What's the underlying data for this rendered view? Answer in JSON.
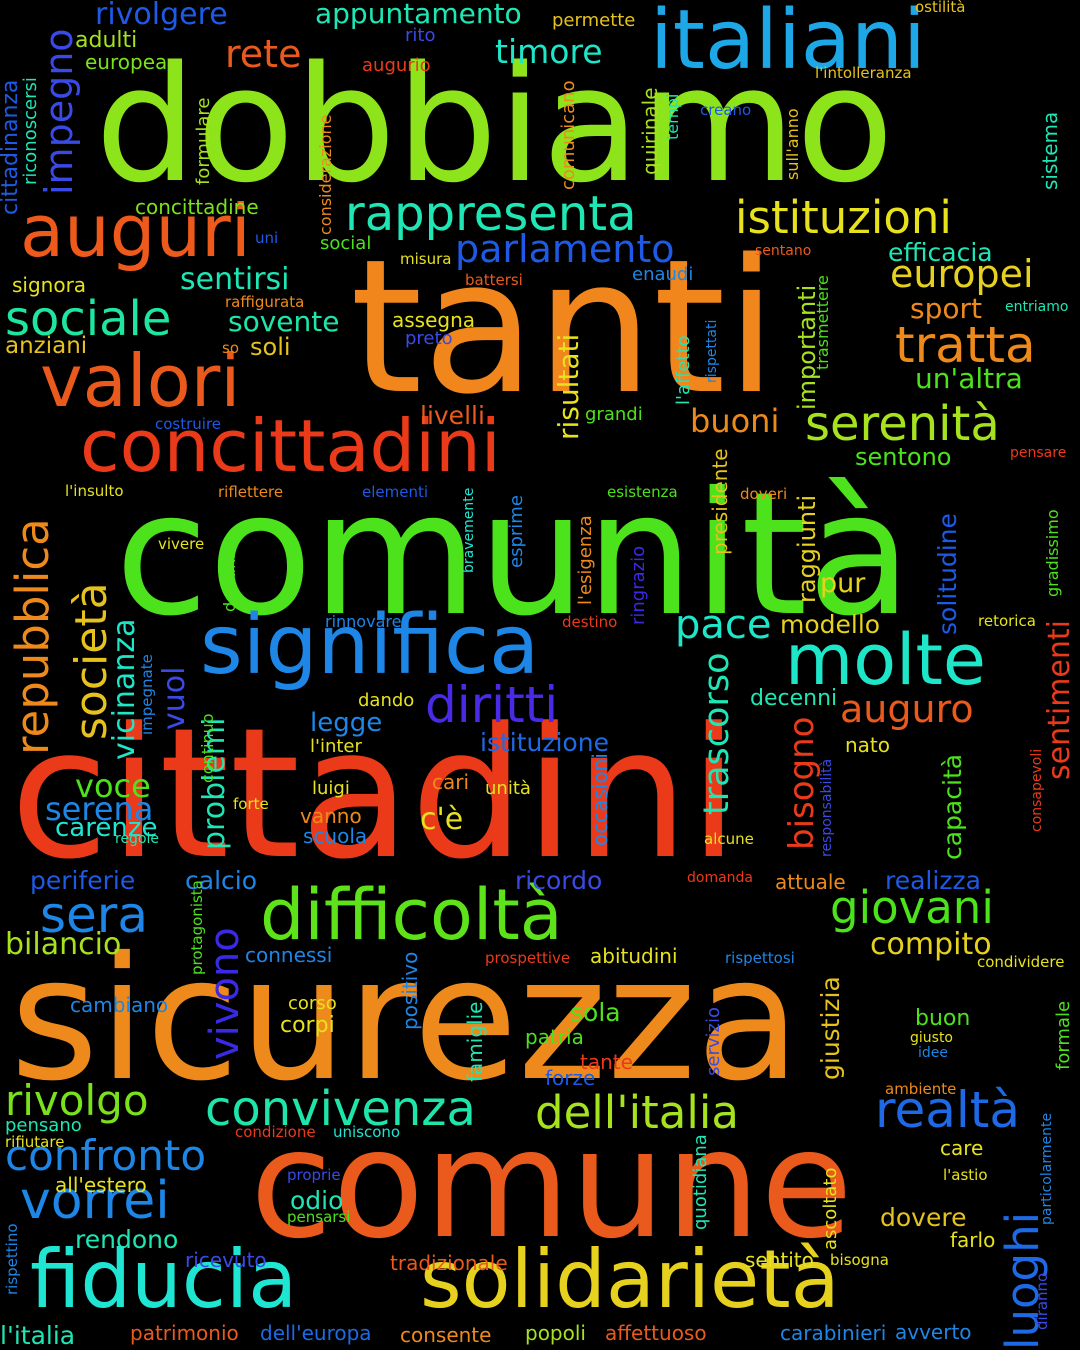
{
  "words": [
    {
      "text": "dobbiamo",
      "color": "#8ee41a"
    },
    {
      "text": "tanti",
      "color": "#f0861c"
    },
    {
      "text": "comunità",
      "color": "#4ce21c"
    },
    {
      "text": "cittadini",
      "color": "#ea3a1a"
    },
    {
      "text": "sicurezza",
      "color": "#ee8a1c"
    },
    {
      "text": "comune",
      "color": "#ea5a1c"
    },
    {
      "text": "italiani",
      "color": "#1ea7e6"
    },
    {
      "text": "auguri",
      "color": "#ee5a1c"
    },
    {
      "text": "valori",
      "color": "#ea5a1c"
    },
    {
      "text": "concittadini",
      "color": "#ea3a1a"
    },
    {
      "text": "significa",
      "color": "#1e86e6"
    },
    {
      "text": "molte",
      "color": "#1ee6c8"
    },
    {
      "text": "difficoltà",
      "color": "#5ee21a"
    },
    {
      "text": "fiducia",
      "color": "#1ee6d2"
    },
    {
      "text": "solidarietà",
      "color": "#e6d21e"
    },
    {
      "text": "rappresenta",
      "color": "#1ee6b4"
    },
    {
      "text": "istituzioni",
      "color": "#e8e21e"
    },
    {
      "text": "convivenza",
      "color": "#1ee6aa"
    },
    {
      "text": "dell'italia",
      "color": "#a6e21e"
    },
    {
      "text": "realtà",
      "color": "#1e6ae6"
    },
    {
      "text": "sociale",
      "color": "#1ee6a0"
    },
    {
      "text": "parlamento",
      "color": "#1e5ae6"
    },
    {
      "text": "europei",
      "color": "#e6d21e"
    },
    {
      "text": "tratta",
      "color": "#ee8a1c"
    },
    {
      "text": "serenità",
      "color": "#a6e21e"
    },
    {
      "text": "diritti",
      "color": "#4a2ae6"
    },
    {
      "text": "confronto",
      "color": "#1e86e6"
    },
    {
      "text": "vorrei",
      "color": "#1e86e6"
    },
    {
      "text": "giovani",
      "color": "#4ce21c"
    },
    {
      "text": "rivolgo",
      "color": "#7ae21c"
    },
    {
      "text": "sera",
      "color": "#1e86e6"
    },
    {
      "text": "pace",
      "color": "#1ee6c8"
    },
    {
      "text": "auguro",
      "color": "#ea5a1c"
    },
    {
      "text": "repubblica",
      "color": "#ee8a1c"
    },
    {
      "text": "società",
      "color": "#e6c21e"
    },
    {
      "text": "impegno",
      "color": "#3a4ae6"
    },
    {
      "text": "luoghi",
      "color": "#1e6ae6"
    },
    {
      "text": "rete",
      "color": "#ea5a1c"
    },
    {
      "text": "timore",
      "color": "#1ee6c8"
    },
    {
      "text": "appuntamento",
      "color": "#1ee6b4"
    },
    {
      "text": "rivolgere",
      "color": "#1e5ae6"
    },
    {
      "text": "adulti",
      "color": "#a6e21e"
    },
    {
      "text": "europea",
      "color": "#7ae21c"
    },
    {
      "text": "cittadinanza",
      "color": "#1e5ae6"
    },
    {
      "text": "riconoscersi",
      "color": "#1ee6b4"
    },
    {
      "text": "sentirsi",
      "color": "#1ee6b4"
    },
    {
      "text": "sovente",
      "color": "#1ee6aa"
    },
    {
      "text": "soli",
      "color": "#e6c21e"
    },
    {
      "text": "anziani",
      "color": "#e6c21e"
    },
    {
      "text": "signora",
      "color": "#e6e21e"
    },
    {
      "text": "livelli",
      "color": "#ea5a1c"
    },
    {
      "text": "buoni",
      "color": "#ee8a1c"
    },
    {
      "text": "un'altra",
      "color": "#4ce21c"
    },
    {
      "text": "sport",
      "color": "#ee8a1c"
    },
    {
      "text": "efficacia",
      "color": "#1ee6b4"
    },
    {
      "text": "sentono",
      "color": "#4ce21c"
    },
    {
      "text": "vicinanza",
      "color": "#1ee6c8"
    },
    {
      "text": "vuol",
      "color": "#3a4ae6"
    },
    {
      "text": "voce",
      "color": "#4ce21c"
    },
    {
      "text": "serena",
      "color": "#1e86e6"
    },
    {
      "text": "carenze",
      "color": "#1ee6d2"
    },
    {
      "text": "problemi",
      "color": "#1ee6b4"
    },
    {
      "text": "vivono",
      "color": "#3a2ae6"
    },
    {
      "text": "legge",
      "color": "#1e86e6"
    },
    {
      "text": "istituzione",
      "color": "#1e6ae6"
    },
    {
      "text": "trascorso",
      "color": "#1ee6b4"
    },
    {
      "text": "bisogno",
      "color": "#ea3a1a"
    },
    {
      "text": "modello",
      "color": "#e6d21e"
    },
    {
      "text": "pur",
      "color": "#e6d21e"
    },
    {
      "text": "decenni",
      "color": "#1ee6b4"
    },
    {
      "text": "nato",
      "color": "#e6e21e"
    },
    {
      "text": "capacità",
      "color": "#4ce21c"
    },
    {
      "text": "sentimenti",
      "color": "#ea3a1a"
    },
    {
      "text": "solitudine",
      "color": "#1e5ae6"
    },
    {
      "text": "raggiunti",
      "color": "#e6d21e"
    },
    {
      "text": "importanti",
      "color": "#a6e21e"
    },
    {
      "text": "risultati",
      "color": "#e6e21e"
    },
    {
      "text": "c'è",
      "color": "#e6e21e"
    },
    {
      "text": "periferie",
      "color": "#1e5ae6"
    },
    {
      "text": "calcio",
      "color": "#1e86e6"
    },
    {
      "text": "bilancio",
      "color": "#a6e21e"
    },
    {
      "text": "ricordo",
      "color": "#3a4ae6"
    },
    {
      "text": "attuale",
      "color": "#ee8a1c"
    },
    {
      "text": "realizza",
      "color": "#1e5ae6"
    },
    {
      "text": "compito",
      "color": "#e6d21e"
    },
    {
      "text": "connessi",
      "color": "#1e86e6"
    },
    {
      "text": "cambiano",
      "color": "#1e86e6"
    },
    {
      "text": "corpi",
      "color": "#e6e21e"
    },
    {
      "text": "sola",
      "color": "#4ce21c"
    },
    {
      "text": "patria",
      "color": "#4ce21c"
    },
    {
      "text": "tante",
      "color": "#ea3a1a"
    },
    {
      "text": "forze",
      "color": "#1e5ae6"
    },
    {
      "text": "abitudini",
      "color": "#e6e21e"
    },
    {
      "text": "giustizia",
      "color": "#e6c21e"
    },
    {
      "text": "buon",
      "color": "#4ce21c"
    },
    {
      "text": "rendono",
      "color": "#1ee6b4"
    },
    {
      "text": "odio",
      "color": "#1ee6b4"
    },
    {
      "text": "dovere",
      "color": "#e6c21e"
    },
    {
      "text": "farlo",
      "color": "#e6e21e"
    },
    {
      "text": "sentito",
      "color": "#e6e21e"
    },
    {
      "text": "care",
      "color": "#e6e21e"
    },
    {
      "text": "l'italia",
      "color": "#1ee6b4"
    },
    {
      "text": "patrimonio",
      "color": "#ea5a1c"
    },
    {
      "text": "dell'europa",
      "color": "#1e6ae6"
    },
    {
      "text": "consente",
      "color": "#ee8a1c"
    },
    {
      "text": "popoli",
      "color": "#a6e21e"
    },
    {
      "text": "affettuoso",
      "color": "#ea5a1c"
    },
    {
      "text": "carabinieri",
      "color": "#1e86e6"
    },
    {
      "text": "avverto",
      "color": "#1e86e6"
    },
    {
      "text": "tradizionale",
      "color": "#ea5a1c"
    },
    {
      "text": "ricevuto",
      "color": "#3a4ae6"
    },
    {
      "text": "pensano",
      "color": "#1ee6b4"
    },
    {
      "text": "all'estero",
      "color": "#e6e21e"
    },
    {
      "text": "concittadine",
      "color": "#7ae21c"
    },
    {
      "text": "social",
      "color": "#4ce21c"
    },
    {
      "text": "misura",
      "color": "#e6e21e"
    },
    {
      "text": "assegna",
      "color": "#e6e21e"
    },
    {
      "text": "preto",
      "color": "#3a4ae6"
    },
    {
      "text": "grandi",
      "color": "#4ce21c"
    },
    {
      "text": "enaudi",
      "color": "#1e86e6"
    },
    {
      "text": "l'affetto",
      "color": "#1ee6b4"
    },
    {
      "text": "presidente",
      "color": "#e6c21e"
    },
    {
      "text": "permette",
      "color": "#e6c21e"
    },
    {
      "text": "augurio",
      "color": "#ea3a1a"
    },
    {
      "text": "rito",
      "color": "#3a4ae6"
    },
    {
      "text": "ostilità",
      "color": "#e6c21e"
    },
    {
      "text": "l'intolleranza",
      "color": "#e6c21e"
    },
    {
      "text": "sistema",
      "color": "#1ee6b4"
    },
    {
      "text": "creano",
      "color": "#1e5ae6"
    },
    {
      "text": "comunicano",
      "color": "#ee8a1c"
    },
    {
      "text": "quirinale",
      "color": "#a6e21e"
    },
    {
      "text": "tempi",
      "color": "#1ee6b4"
    },
    {
      "text": "formulare",
      "color": "#a6e21e"
    },
    {
      "text": "considerazione",
      "color": "#ee8a1c"
    },
    {
      "text": "sull'anno",
      "color": "#e6c21e"
    },
    {
      "text": "entriamo",
      "color": "#1ee6b4"
    },
    {
      "text": "sentano",
      "color": "#ea5a1c"
    },
    {
      "text": "raffigurata",
      "color": "#ee8a1c"
    },
    {
      "text": "battersi",
      "color": "#ea5a1c"
    },
    {
      "text": "uni",
      "color": "#1e5ae6"
    },
    {
      "text": "so",
      "color": "#ee8a1c"
    },
    {
      "text": "trasmettere",
      "color": "#4ce21c"
    },
    {
      "text": "rispettati",
      "color": "#1e86e6"
    },
    {
      "text": "costruire",
      "color": "#1e5ae6"
    },
    {
      "text": "l'insulto",
      "color": "#e6e21e"
    },
    {
      "text": "riflettere",
      "color": "#ee8a1c"
    },
    {
      "text": "elementi",
      "color": "#1e5ae6"
    },
    {
      "text": "esistenza",
      "color": "#4ce21c"
    },
    {
      "text": "doveri",
      "color": "#ee8a1c"
    },
    {
      "text": "pensare",
      "color": "#ea3a1a"
    },
    {
      "text": "vivere",
      "color": "#e6e21e"
    },
    {
      "text": "bravemente",
      "color": "#1ee6d2"
    },
    {
      "text": "esprime",
      "color": "#1e86e6"
    },
    {
      "text": "l'esigenza",
      "color": "#ee8a1c"
    },
    {
      "text": "ringrazio",
      "color": "#3a2ae6"
    },
    {
      "text": "dell'anno",
      "color": "#4ce21c"
    },
    {
      "text": "gradissimo",
      "color": "#4ce21c"
    },
    {
      "text": "rinnovare",
      "color": "#1e86e6"
    },
    {
      "text": "destino",
      "color": "#ea3a1a"
    },
    {
      "text": "retorica",
      "color": "#e6e21e"
    },
    {
      "text": "impegnate",
      "color": "#1e86e6"
    },
    {
      "text": "continuo",
      "color": "#4ce21c"
    },
    {
      "text": "dando",
      "color": "#e6e21e"
    },
    {
      "text": "l'inter",
      "color": "#e6e21e"
    },
    {
      "text": "consapevoli",
      "color": "#ea3a1a"
    },
    {
      "text": "responsabilità",
      "color": "#3a4ae6"
    },
    {
      "text": "luigi",
      "color": "#e6e21e"
    },
    {
      "text": "cari",
      "color": "#ee8a1c"
    },
    {
      "text": "unità",
      "color": "#e6e21e"
    },
    {
      "text": "vanno",
      "color": "#ee8a1c"
    },
    {
      "text": "scuola",
      "color": "#1e86e6"
    },
    {
      "text": "forte",
      "color": "#e6e21e"
    },
    {
      "text": "regole",
      "color": "#1ee6b4"
    },
    {
      "text": "occasioni",
      "color": "#1e86e6"
    },
    {
      "text": "alcune",
      "color": "#e6e21e"
    },
    {
      "text": "domanda",
      "color": "#ea3a1a"
    },
    {
      "text": "protagonista",
      "color": "#4ce21c"
    },
    {
      "text": "positivo",
      "color": "#1e86e6"
    },
    {
      "text": "famiglie",
      "color": "#1ee6b4"
    },
    {
      "text": "prospettive",
      "color": "#ea3a1a"
    },
    {
      "text": "servizio",
      "color": "#3a4ae6"
    },
    {
      "text": "rispettosi",
      "color": "#1e86e6"
    },
    {
      "text": "condividere",
      "color": "#e6e21e"
    },
    {
      "text": "corso",
      "color": "#e6e21e"
    },
    {
      "text": "giusto",
      "color": "#e6e21e"
    },
    {
      "text": "idee",
      "color": "#1e86e6"
    },
    {
      "text": "formale",
      "color": "#4ce21c"
    },
    {
      "text": "ambiente",
      "color": "#ee8a1c"
    },
    {
      "text": "rifiutare",
      "color": "#e6e21e"
    },
    {
      "text": "condizione",
      "color": "#ea3a1a"
    },
    {
      "text": "uniscono",
      "color": "#1ee6d2"
    },
    {
      "text": "particolarmente",
      "color": "#1e86e6"
    },
    {
      "text": "proprie",
      "color": "#3a4ae6"
    },
    {
      "text": "l'astio",
      "color": "#e6e21e"
    },
    {
      "text": "ascoltato",
      "color": "#e6e21e"
    },
    {
      "text": "quotidiana",
      "color": "#1ee6b4"
    },
    {
      "text": "pensarsi",
      "color": "#4ce21c"
    },
    {
      "text": "bisogna",
      "color": "#e6e21e"
    },
    {
      "text": "rispettino",
      "color": "#1e86e6"
    },
    {
      "text": "diranno",
      "color": "#3a4ae6"
    }
  ]
}
